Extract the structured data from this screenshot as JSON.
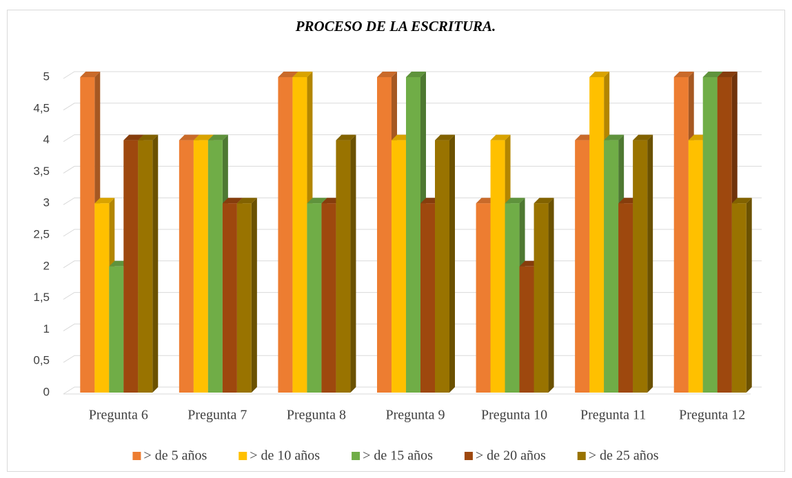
{
  "chart_data": {
    "type": "bar3d",
    "title": "PROCESO DE LA ESCRITURA.",
    "categories": [
      "Pregunta 6",
      "Pregunta 7",
      "Pregunta 8",
      "Pregunta 9",
      "Pregunta 10",
      "Pregunta 11",
      "Pregunta 12"
    ],
    "series": [
      {
        "name": "> de 5 años",
        "color": "#ED7D31",
        "values": [
          5,
          4,
          5,
          5,
          3,
          4,
          5
        ]
      },
      {
        "name": "> de 10 años",
        "color": "#FFC000",
        "values": [
          3,
          4,
          5,
          4,
          4,
          5,
          4
        ]
      },
      {
        "name": "> de 15 años",
        "color": "#70AD47",
        "values": [
          2,
          4,
          3,
          5,
          3,
          4,
          5
        ]
      },
      {
        "name": "> de 20 años",
        "color": "#9E480E",
        "values": [
          4,
          3,
          3,
          3,
          2,
          3,
          5
        ]
      },
      {
        "name": "> de 25 años",
        "color": "#997300",
        "values": [
          4,
          3,
          4,
          4,
          3,
          4,
          3
        ]
      }
    ],
    "ylim": [
      0,
      5
    ],
    "yticks": [
      0,
      {
        "value": 0.5,
        "label": "0,5"
      },
      1,
      {
        "value": 1.5,
        "label": "1,5"
      },
      2,
      {
        "value": 2.5,
        "label": "2,5"
      },
      3,
      {
        "value": 3.5,
        "label": "3,5"
      },
      4,
      {
        "value": 4.5,
        "label": "4,5"
      },
      5
    ],
    "grid": true,
    "legend": "bottom"
  }
}
